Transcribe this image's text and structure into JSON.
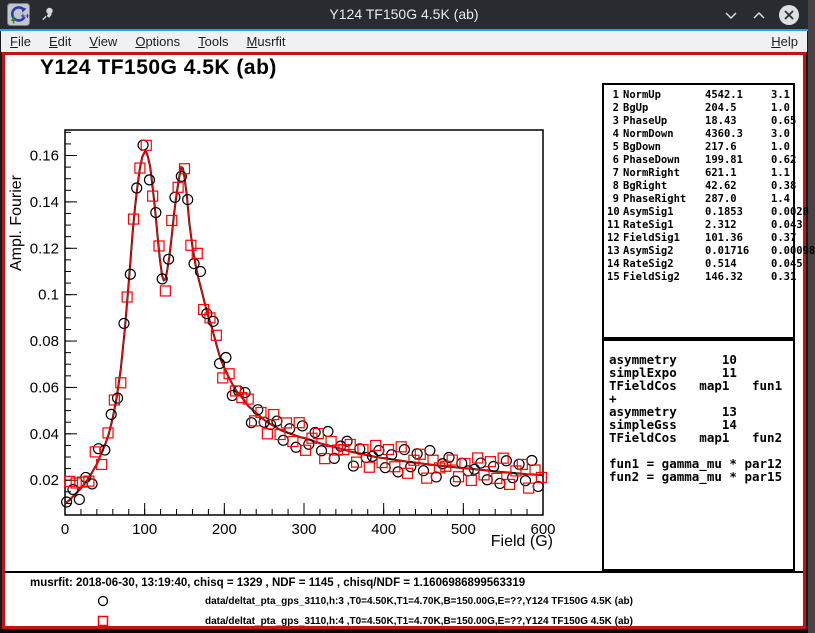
{
  "window": {
    "title": "Y124 TF150G 4.5K (ab)",
    "controls": {
      "minimize": "v",
      "maximize": "^",
      "close": "x"
    }
  },
  "menu": {
    "items": [
      "File",
      "Edit",
      "View",
      "Options",
      "Tools",
      "Musrfit"
    ],
    "help": "Help"
  },
  "plot": {
    "title": "Y124 TF150G 4.5K (ab)"
  },
  "chart_data": {
    "type": "scatter",
    "title": "Y124 TF150G 4.5K (ab)",
    "xlabel": "Field (G)",
    "ylabel": "Ampl. Fourier",
    "xlim": [
      0,
      600
    ],
    "ylim": [
      0.005,
      0.171
    ],
    "x_major_ticks": [
      0,
      100,
      200,
      300,
      400,
      500,
      600
    ],
    "x_minor_step": 20,
    "y_major_ticks": [
      0.02,
      0.04,
      0.06,
      0.08,
      0.1,
      0.12,
      0.14,
      0.16
    ],
    "y_minor_step": 0.005,
    "grid": false,
    "legend_position": "bottom",
    "fit_colors": [
      "#000000",
      "#ff0000"
    ],
    "fit_curve": [
      [
        0,
        0.01
      ],
      [
        5,
        0.0112
      ],
      [
        10,
        0.013
      ],
      [
        15,
        0.0147
      ],
      [
        20,
        0.0165
      ],
      [
        25,
        0.0187
      ],
      [
        30,
        0.021
      ],
      [
        35,
        0.024
      ],
      [
        40,
        0.027
      ],
      [
        45,
        0.031
      ],
      [
        50,
        0.035
      ],
      [
        55,
        0.04
      ],
      [
        60,
        0.047
      ],
      [
        65,
        0.056
      ],
      [
        70,
        0.068
      ],
      [
        75,
        0.085
      ],
      [
        80,
        0.105
      ],
      [
        85,
        0.127
      ],
      [
        88,
        0.138
      ],
      [
        91,
        0.147
      ],
      [
        94,
        0.1545
      ],
      [
        97,
        0.1595
      ],
      [
        100,
        0.1615
      ],
      [
        102,
        0.1615
      ],
      [
        104,
        0.1595
      ],
      [
        107,
        0.155
      ],
      [
        110,
        0.1465
      ],
      [
        113,
        0.137
      ],
      [
        116,
        0.126
      ],
      [
        119,
        0.1155
      ],
      [
        122,
        0.108
      ],
      [
        124,
        0.1062
      ],
      [
        126,
        0.1066
      ],
      [
        128,
        0.11
      ],
      [
        131,
        0.1165
      ],
      [
        134,
        0.1255
      ],
      [
        137,
        0.135
      ],
      [
        140,
        0.143
      ],
      [
        143,
        0.15
      ],
      [
        146,
        0.155
      ],
      [
        148,
        0.1545
      ],
      [
        150,
        0.1505
      ],
      [
        153,
        0.1425
      ],
      [
        156,
        0.131
      ],
      [
        160,
        0.1205
      ],
      [
        164,
        0.1125
      ],
      [
        168,
        0.1065
      ],
      [
        172,
        0.101
      ],
      [
        176,
        0.0955
      ],
      [
        180,
        0.0905
      ],
      [
        185,
        0.085
      ],
      [
        190,
        0.0785
      ],
      [
        195,
        0.0725
      ],
      [
        200,
        0.0685
      ],
      [
        205,
        0.0648
      ],
      [
        210,
        0.0615
      ],
      [
        215,
        0.0585
      ],
      [
        220,
        0.0565
      ],
      [
        225,
        0.0545
      ],
      [
        230,
        0.052
      ],
      [
        235,
        0.0505
      ],
      [
        240,
        0.049
      ],
      [
        245,
        0.0475
      ],
      [
        250,
        0.046
      ],
      [
        255,
        0.0448
      ],
      [
        260,
        0.0438
      ],
      [
        265,
        0.0428
      ],
      [
        270,
        0.0417
      ],
      [
        275,
        0.041
      ],
      [
        280,
        0.0405
      ],
      [
        285,
        0.0398
      ],
      [
        290,
        0.0392
      ],
      [
        295,
        0.0386
      ],
      [
        300,
        0.0382
      ],
      [
        310,
        0.0371
      ],
      [
        320,
        0.0359
      ],
      [
        330,
        0.035
      ],
      [
        340,
        0.0342
      ],
      [
        350,
        0.0332
      ],
      [
        360,
        0.0322
      ],
      [
        370,
        0.0315
      ],
      [
        380,
        0.0307
      ],
      [
        390,
        0.03
      ],
      [
        400,
        0.0295
      ],
      [
        410,
        0.029
      ],
      [
        420,
        0.0285
      ],
      [
        430,
        0.028
      ],
      [
        440,
        0.0276
      ],
      [
        450,
        0.0271
      ],
      [
        460,
        0.0267
      ],
      [
        470,
        0.0263
      ],
      [
        480,
        0.0259
      ],
      [
        490,
        0.0256
      ],
      [
        500,
        0.0252
      ],
      [
        510,
        0.0249
      ],
      [
        520,
        0.0245
      ],
      [
        530,
        0.0242
      ],
      [
        540,
        0.0238
      ],
      [
        550,
        0.0235
      ],
      [
        560,
        0.0232
      ],
      [
        570,
        0.0229
      ],
      [
        580,
        0.0226
      ],
      [
        590,
        0.0224
      ],
      [
        600,
        0.0222
      ]
    ],
    "series": [
      {
        "name": "data h:3",
        "marker": "circle",
        "color": "#000000",
        "points": [
          [
            2,
            0.0106
          ],
          [
            10,
            0.016
          ],
          [
            18,
            0.0117
          ],
          [
            26,
            0.0212
          ],
          [
            34,
            0.0184
          ],
          [
            42,
            0.0336
          ],
          [
            50,
            0.033
          ],
          [
            58,
            0.0484
          ],
          [
            66,
            0.0554
          ],
          [
            74,
            0.0876
          ],
          [
            82,
            0.1088
          ],
          [
            90,
            0.146
          ],
          [
            98,
            0.1645
          ],
          [
            106,
            0.1495
          ],
          [
            114,
            0.1354
          ],
          [
            122,
            0.1068
          ],
          [
            130,
            0.1153
          ],
          [
            138,
            0.142
          ],
          [
            146,
            0.151
          ],
          [
            154,
            0.141
          ],
          [
            162,
            0.1134
          ],
          [
            170,
            0.11
          ],
          [
            178,
            0.0918
          ],
          [
            186,
            0.0885
          ],
          [
            194,
            0.0703
          ],
          [
            202,
            0.0729
          ],
          [
            210,
            0.0565
          ],
          [
            218,
            0.0585
          ],
          [
            226,
            0.0578
          ],
          [
            234,
            0.0448
          ],
          [
            242,
            0.0504
          ],
          [
            250,
            0.045
          ],
          [
            258,
            0.044
          ],
          [
            266,
            0.0455
          ],
          [
            274,
            0.0372
          ],
          [
            282,
            0.0422
          ],
          [
            290,
            0.0342
          ],
          [
            298,
            0.0434
          ],
          [
            306,
            0.0355
          ],
          [
            314,
            0.0406
          ],
          [
            322,
            0.0327
          ],
          [
            330,
            0.041
          ],
          [
            338,
            0.0294
          ],
          [
            346,
            0.0347
          ],
          [
            354,
            0.0368
          ],
          [
            362,
            0.0261
          ],
          [
            370,
            0.0335
          ],
          [
            378,
            0.0298
          ],
          [
            386,
            0.0303
          ],
          [
            394,
            0.0328
          ],
          [
            402,
            0.0254
          ],
          [
            410,
            0.031
          ],
          [
            418,
            0.0236
          ],
          [
            426,
            0.0332
          ],
          [
            434,
            0.0258
          ],
          [
            442,
            0.0314
          ],
          [
            450,
            0.0241
          ],
          [
            458,
            0.0328
          ],
          [
            466,
            0.0214
          ],
          [
            474,
            0.0271
          ],
          [
            482,
            0.0298
          ],
          [
            490,
            0.0196
          ],
          [
            498,
            0.0273
          ],
          [
            506,
            0.024
          ],
          [
            514,
            0.0247
          ],
          [
            522,
            0.0274
          ],
          [
            530,
            0.0202
          ],
          [
            538,
            0.0259
          ],
          [
            546,
            0.0186
          ],
          [
            554,
            0.0284
          ],
          [
            562,
            0.0211
          ],
          [
            570,
            0.0269
          ],
          [
            578,
            0.0198
          ],
          [
            586,
            0.0285
          ],
          [
            594,
            0.0173
          ]
        ]
      },
      {
        "name": "data h:4",
        "marker": "square",
        "color": "#ff0000",
        "points": [
          [
            6,
            0.0195
          ],
          [
            14,
            0.0188
          ],
          [
            22,
            0.0192
          ],
          [
            30,
            0.0196
          ],
          [
            38,
            0.0322
          ],
          [
            46,
            0.0268
          ],
          [
            54,
            0.0404
          ],
          [
            62,
            0.0546
          ],
          [
            70,
            0.062
          ],
          [
            78,
            0.099
          ],
          [
            86,
            0.1326
          ],
          [
            94,
            0.1546
          ],
          [
            102,
            0.1644
          ],
          [
            110,
            0.1425
          ],
          [
            118,
            0.121
          ],
          [
            126,
            0.1016
          ],
          [
            134,
            0.132
          ],
          [
            142,
            0.1463
          ],
          [
            150,
            0.1543
          ],
          [
            158,
            0.1213
          ],
          [
            166,
            0.1178
          ],
          [
            174,
            0.0936
          ],
          [
            182,
            0.09
          ],
          [
            190,
            0.0825
          ],
          [
            198,
            0.0641
          ],
          [
            206,
            0.0659
          ],
          [
            214,
            0.0585
          ],
          [
            222,
            0.0556
          ],
          [
            230,
            0.055
          ],
          [
            238,
            0.0456
          ],
          [
            246,
            0.0492
          ],
          [
            254,
            0.04
          ],
          [
            262,
            0.0483
          ],
          [
            270,
            0.0397
          ],
          [
            278,
            0.0447
          ],
          [
            286,
            0.0367
          ],
          [
            294,
            0.0448
          ],
          [
            302,
            0.0329
          ],
          [
            310,
            0.0381
          ],
          [
            318,
            0.0401
          ],
          [
            326,
            0.0293
          ],
          [
            334,
            0.0367
          ],
          [
            342,
            0.033
          ],
          [
            350,
            0.0332
          ],
          [
            358,
            0.0354
          ],
          [
            366,
            0.0278
          ],
          [
            374,
            0.0332
          ],
          [
            382,
            0.0256
          ],
          [
            390,
            0.035
          ],
          [
            398,
            0.0276
          ],
          [
            406,
            0.0332
          ],
          [
            414,
            0.0258
          ],
          [
            422,
            0.0344
          ],
          [
            430,
            0.023
          ],
          [
            438,
            0.0286
          ],
          [
            446,
            0.0312
          ],
          [
            454,
            0.0209
          ],
          [
            462,
            0.0286
          ],
          [
            470,
            0.0253
          ],
          [
            478,
            0.026
          ],
          [
            486,
            0.0287
          ],
          [
            494,
            0.0215
          ],
          [
            502,
            0.0272
          ],
          [
            510,
            0.0199
          ],
          [
            518,
            0.0296
          ],
          [
            526,
            0.0223
          ],
          [
            534,
            0.028
          ],
          [
            542,
            0.0208
          ],
          [
            550,
            0.0295
          ],
          [
            558,
            0.0182
          ],
          [
            566,
            0.024
          ],
          [
            574,
            0.0268
          ],
          [
            582,
            0.0166
          ],
          [
            590,
            0.0244
          ],
          [
            598,
            0.0212
          ]
        ]
      }
    ]
  },
  "param_table": {
    "rows": [
      {
        "num": "1",
        "name": "NormUp",
        "value": "4542.1",
        "error": "3.1"
      },
      {
        "num": "2",
        "name": "BgUp",
        "value": "204.5",
        "error": "1.0"
      },
      {
        "num": "3",
        "name": "PhaseUp",
        "value": "18.43",
        "error": "0.65"
      },
      {
        "num": "4",
        "name": "NormDown",
        "value": "4360.3",
        "error": "3.0"
      },
      {
        "num": "5",
        "name": "BgDown",
        "value": "217.6",
        "error": "1.0"
      },
      {
        "num": "6",
        "name": "PhaseDown",
        "value": "199.81",
        "error": "0.62"
      },
      {
        "num": "7",
        "name": "NormRight",
        "value": "621.1",
        "error": "1.1"
      },
      {
        "num": "8",
        "name": "BgRight",
        "value": "42.62",
        "error": "0.38"
      },
      {
        "num": "9",
        "name": "PhaseRight",
        "value": "287.0",
        "error": "1.4"
      },
      {
        "num": "10",
        "name": "AsymSig1",
        "value": "0.1853",
        "error": "0.0028"
      },
      {
        "num": "11",
        "name": "RateSig1",
        "value": "2.312",
        "error": "0.043"
      },
      {
        "num": "12",
        "name": "FieldSig1",
        "value": "101.36",
        "error": "0.37"
      },
      {
        "num": "13",
        "name": "AsymSig2",
        "value": "0.01716",
        "error": "0.00098"
      },
      {
        "num": "14",
        "name": "RateSig2",
        "value": "0.514",
        "error": "0.045"
      },
      {
        "num": "15",
        "name": "FieldSig2",
        "value": "146.32",
        "error": "0.31"
      }
    ]
  },
  "theory": {
    "lines": [
      "asymmetry      10",
      "simplExpo      11",
      "TFieldCos   map1   fun1",
      "+",
      "asymmetry      13",
      "simpleGss      14",
      "TFieldCos   map1   fun2",
      "",
      "fun1 = gamma_mu * par12",
      "fun2 = gamma_mu * par15"
    ]
  },
  "footer": {
    "fit_info": "musrfit: 2018-06-30, 13:19:40, chisq = 1329 , NDF = 1145 , chisq/NDF = 1.1606986899563319",
    "legend": [
      {
        "marker": "circle",
        "color": "#000000",
        "label": "data/deltat_pta_gps_3110,h:3 ,T0=4.50K,T1=4.70K,B=150.00G,E=??,Y124 TF150G 4.5K (ab)"
      },
      {
        "marker": "square",
        "color": "#ff0000",
        "label": "data/deltat_pta_gps_3110,h:4 ,T0=4.50K,T1=4.70K,B=150.00G,E=??,Y124 TF150G 4.5K (ab)"
      }
    ]
  }
}
